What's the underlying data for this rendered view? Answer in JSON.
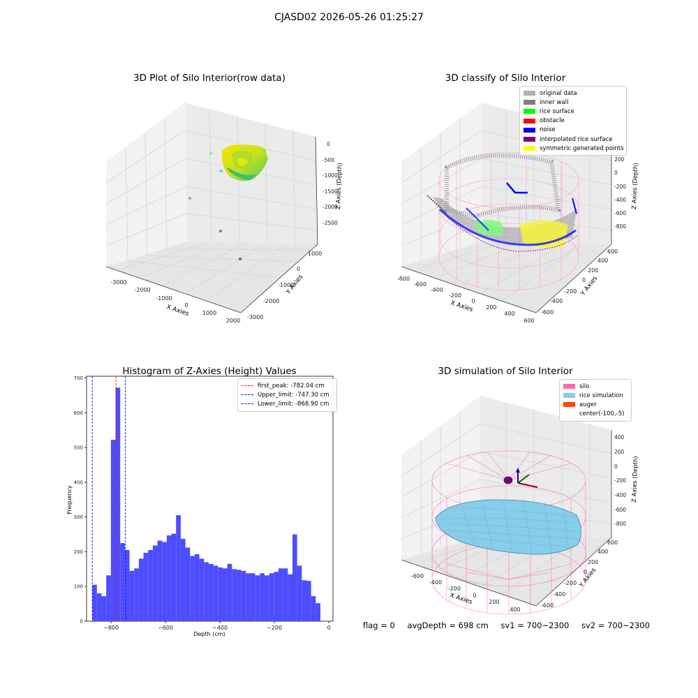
{
  "suptitle": "CJASD02 2026-05-26 01:25:27",
  "colors": {
    "hist_bar": "#4d4dff",
    "peak_line": "#ff0000",
    "limit_line": "#0000ff",
    "silo": "#ff69b4",
    "rice": "#87ceeb",
    "auger": "#ff4500"
  },
  "footer": {
    "flag": "flag = 0",
    "avg_depth": "avgDepth = 698 cm",
    "sv1": "sv1 = 700~2300",
    "sv2": "sv2 = 700~2300"
  },
  "chart_data": [
    {
      "type": "scatter",
      "projection": "3d",
      "title": "3D Plot of Silo Interior(row data)",
      "xlabel": "X Axies",
      "ylabel": "Y Axies",
      "zlabel": "Z Axies (Depth)",
      "xticks": [
        "-3000",
        "-2000",
        "-1000",
        "0",
        "1000",
        "2000"
      ],
      "yticks": [
        "-3000",
        "-2000",
        "-1000",
        "0",
        "1000"
      ],
      "zticks": [
        "0",
        "-500",
        "-1000",
        "-1500",
        "-2000",
        "-2500"
      ],
      "series": [
        {
          "values": "dense point cloud forming silo interior",
          "colormap": "yellow-green-blue"
        },
        {
          "values": "scattered outliers"
        }
      ],
      "grid": true
    },
    {
      "type": "scatter",
      "projection": "3d",
      "title": "3D classify of Silo Interior",
      "xlabel": "X Axies",
      "ylabel": "Y Axies",
      "zlabel": "Z Axies (Depth)",
      "xticks": [
        "-800",
        "-600",
        "-400",
        "-200",
        "0",
        "200",
        "400",
        "600"
      ],
      "yticks": [
        "-600",
        "-400",
        "-200",
        "0",
        "200",
        "400",
        "600"
      ],
      "zticks": [
        "200",
        "0",
        "-200",
        "-400",
        "-600",
        "-800"
      ],
      "zticks_top_partial": "0",
      "legend": {
        "placement": "top-right",
        "entries": [
          {
            "name": "original data",
            "color": "#b0b0b0"
          },
          {
            "name": "inner wall",
            "color": "#808080"
          },
          {
            "name": "rice surface",
            "color": "#00ff00"
          },
          {
            "name": "obstacle",
            "color": "#ff0000"
          },
          {
            "name": "noise",
            "color": "#0000ff"
          },
          {
            "name": "interpolated rice surface",
            "color": "#800080"
          },
          {
            "name": "symmetric generated points",
            "color": "#ffff00"
          }
        ]
      },
      "grid": true
    },
    {
      "type": "bar",
      "subtype": "histogram",
      "title": "Histogram of Z-Axies (Height) Values",
      "xlabel": "Depth (cm)",
      "ylabel": "Frequency",
      "xlim": [
        -890,
        15
      ],
      "ylim": [
        0,
        705
      ],
      "xticks": [
        -800,
        -600,
        -400,
        -200,
        0
      ],
      "yticks": [
        0,
        100,
        200,
        300,
        400,
        500,
        600,
        700
      ],
      "bin_start": -869,
      "bin_width": 17.1,
      "values": [
        105,
        80,
        72,
        132,
        522,
        672,
        225,
        205,
        145,
        152,
        180,
        197,
        205,
        218,
        232,
        228,
        247,
        252,
        305,
        237,
        212,
        188,
        193,
        180,
        170,
        165,
        160,
        155,
        152,
        165,
        150,
        148,
        145,
        138,
        138,
        132,
        138,
        132,
        138,
        142,
        152,
        152,
        135,
        250,
        160,
        118,
        116,
        72,
        52
      ],
      "lines": [
        {
          "name": "first_peak: -782.04 cm",
          "x": -782.04,
          "color": "#ff0000"
        },
        {
          "name": "Upper_limit: -747.30 cm",
          "x": -747.3,
          "color": "#0000ff"
        },
        {
          "name": "Lower_limit: -868.90 cm",
          "x": -868.9,
          "color": "#0000ff"
        }
      ],
      "legend": "top-right"
    },
    {
      "type": "area",
      "projection": "3d",
      "title": "3D simulation of Silo Interior",
      "xlabel": "X Axies",
      "ylabel": "Y Axies",
      "zlabel": "Z Axies (Depth)",
      "xticks": [
        "-600",
        "-400",
        "-200",
        "0",
        "200",
        "400"
      ],
      "yticks": [
        "-600",
        "-400",
        "-200",
        "0",
        "200",
        "400",
        "600"
      ],
      "zticks": [
        "400",
        "200",
        "0",
        "-200",
        "-400",
        "-600",
        "-800"
      ],
      "legend": {
        "placement": "top-right",
        "entries": [
          {
            "name": "silo",
            "color": "#ff69b4"
          },
          {
            "name": "rice simulation",
            "color": "#87ceeb"
          },
          {
            "name": "auger",
            "color": "#ff4500"
          },
          {
            "name": "center(-100,-5)",
            "color": ""
          }
        ]
      },
      "grid": true
    }
  ]
}
